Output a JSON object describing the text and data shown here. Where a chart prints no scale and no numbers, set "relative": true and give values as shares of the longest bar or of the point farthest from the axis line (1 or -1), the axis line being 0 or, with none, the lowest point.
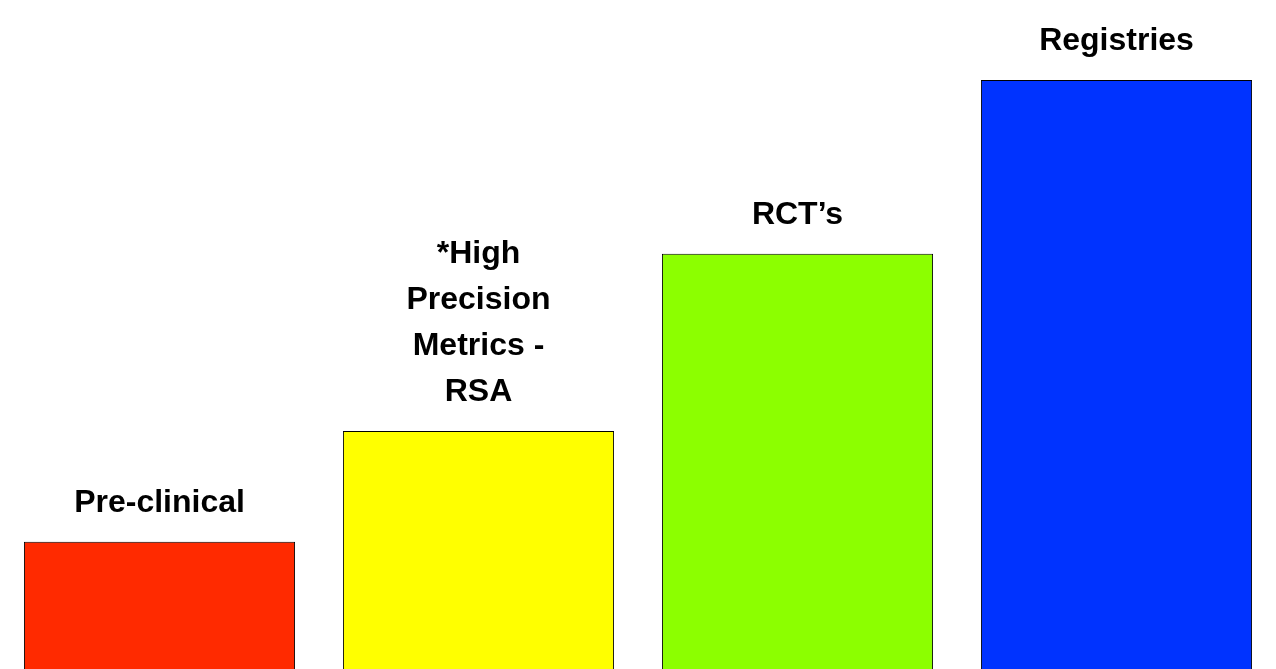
{
  "chart_data": {
    "type": "bar",
    "relative": true,
    "categories": [
      "Pre-clinical",
      "*High Precision Metrics - RSA",
      "RCT’s",
      "Registries"
    ],
    "values": [
      0.216,
      0.404,
      0.705,
      1
    ],
    "colors": [
      "#ff2a00",
      "#ffff00",
      "#8cff00",
      "#0033ff"
    ],
    "legend": false
  }
}
